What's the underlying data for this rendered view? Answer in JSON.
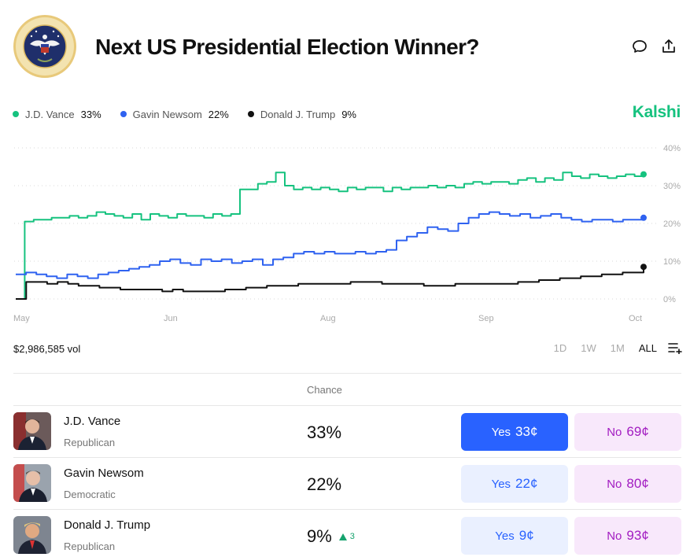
{
  "header": {
    "title": "Next US Presidential Election Winner?",
    "seal_text": "SEAL OF THE PRESIDENT OF THE UNITED STATES",
    "comment_icon": "comment-icon",
    "share_icon": "share-icon"
  },
  "brand": "Kalshi",
  "legend": [
    {
      "name": "J.D. Vance",
      "value": "33%",
      "color": "#16c27f"
    },
    {
      "name": "Gavin Newsom",
      "value": "22%",
      "color": "#2f62f0"
    },
    {
      "name": "Donald J. Trump",
      "value": "9%",
      "color": "#111111"
    }
  ],
  "chart_data": {
    "type": "line",
    "x_ticks": [
      "May",
      "Jun",
      "Aug",
      "Sep",
      "Oct"
    ],
    "y_ticks": [
      "40%",
      "30%",
      "20%",
      "10%",
      "0%"
    ],
    "ylim": [
      0,
      40
    ],
    "grid": true,
    "series": [
      {
        "name": "J.D. Vance",
        "color": "#16c27f",
        "values": [
          0,
          20.5,
          21,
          21,
          21.5,
          21.5,
          22,
          21.5,
          22,
          23,
          22.5,
          22,
          21.5,
          22.5,
          21,
          22.5,
          22,
          21.5,
          22.5,
          22,
          22,
          21.5,
          22.5,
          22,
          22.5,
          29,
          29,
          30.5,
          31,
          33.5,
          30,
          29,
          29.5,
          29,
          29.5,
          29,
          28.5,
          29.5,
          29,
          29.5,
          29.5,
          28.5,
          29.5,
          29,
          29.5,
          29.5,
          30,
          29.5,
          30,
          29.5,
          30.5,
          31,
          30.5,
          31,
          31,
          30.5,
          31.5,
          32,
          31,
          32,
          31.5,
          33.5,
          32.5,
          32,
          33,
          32.5,
          32,
          32.5,
          33,
          32.5,
          33
        ]
      },
      {
        "name": "Gavin Newsom",
        "color": "#2f62f0",
        "values": [
          6.5,
          7,
          6.5,
          6,
          5.5,
          6.5,
          6,
          5.5,
          6.5,
          7,
          7.5,
          8,
          8.5,
          9,
          10,
          10.5,
          9.5,
          9,
          10.5,
          10,
          10.5,
          9.5,
          10,
          10.5,
          9,
          10.5,
          11,
          12,
          12.5,
          12,
          12.5,
          12,
          12,
          12.5,
          12,
          12.5,
          13,
          15.5,
          16.5,
          17.5,
          19,
          18.5,
          18,
          20,
          21.5,
          22.5,
          23,
          22.5,
          22,
          22.5,
          21.5,
          22,
          22.5,
          21.5,
          21,
          20.5,
          21,
          21,
          20.5,
          21,
          21,
          21.5
        ]
      },
      {
        "name": "Donald J. Trump",
        "color": "#111111",
        "values": [
          0,
          4.5,
          4.5,
          4,
          4.5,
          4,
          3.5,
          3.5,
          3,
          3,
          2.5,
          2.5,
          2.5,
          2.5,
          2,
          2.5,
          2,
          2,
          2,
          2,
          2.5,
          2.5,
          3,
          3,
          3.5,
          3.5,
          3.5,
          4,
          4,
          4,
          4,
          4,
          4.5,
          4.5,
          4.5,
          4,
          4,
          4,
          4,
          3.5,
          3.5,
          3.5,
          4,
          4,
          4,
          4,
          4,
          4,
          4.5,
          4.5,
          5,
          5,
          5.5,
          5.5,
          6,
          6,
          6.5,
          6.5,
          7,
          7,
          8.5
        ]
      }
    ]
  },
  "volume": "$2,986,585 vol",
  "ranges": [
    {
      "label": "1D",
      "active": false
    },
    {
      "label": "1W",
      "active": false
    },
    {
      "label": "1M",
      "active": false
    },
    {
      "label": "ALL",
      "active": true
    }
  ],
  "table": {
    "chance_header": "Chance",
    "rows": [
      {
        "name": "J.D. Vance",
        "party": "Republican",
        "chance": "33%",
        "delta": "",
        "yes_label": "Yes",
        "yes_price": "33¢",
        "no_label": "No",
        "no_price": "69¢",
        "primary": true
      },
      {
        "name": "Gavin Newsom",
        "party": "Democratic",
        "chance": "22%",
        "delta": "",
        "yes_label": "Yes",
        "yes_price": "22¢",
        "no_label": "No",
        "no_price": "80¢",
        "primary": false
      },
      {
        "name": "Donald J. Trump",
        "party": "Republican",
        "chance": "9%",
        "delta": "3",
        "yes_label": "Yes",
        "yes_price": "9¢",
        "no_label": "No",
        "no_price": "93¢",
        "primary": false
      }
    ]
  }
}
